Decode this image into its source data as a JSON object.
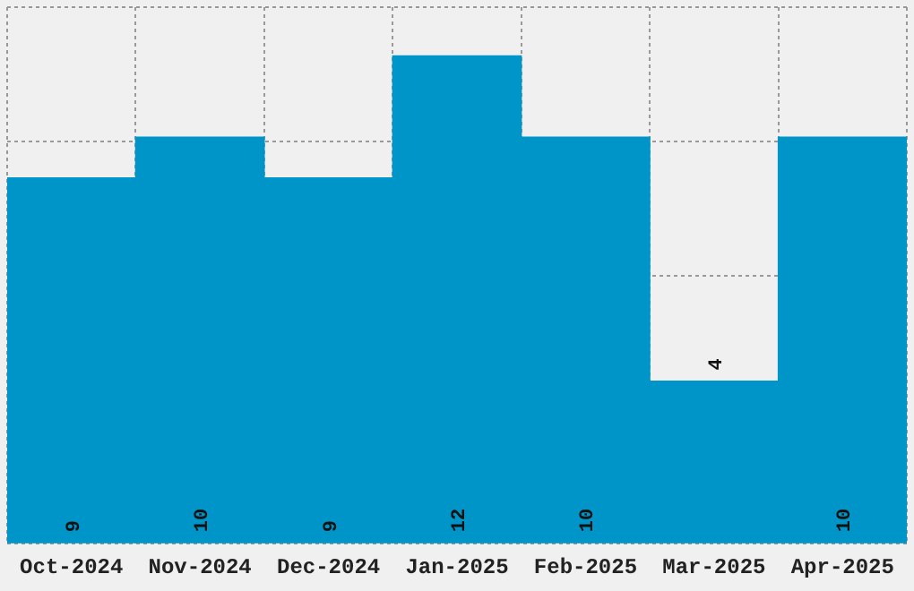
{
  "chart_data": {
    "type": "bar",
    "categories": [
      "Oct-2024",
      "Nov-2024",
      "Dec-2024",
      "Jan-2025",
      "Feb-2025",
      "Mar-2025",
      "Apr-2025"
    ],
    "values": [
      9,
      10,
      9,
      12,
      10,
      4,
      10
    ],
    "color": "#0095c8",
    "ylim": [
      0,
      13.2
    ],
    "tick_labels": "x",
    "grid": true,
    "data_labels": true,
    "legend": false
  }
}
